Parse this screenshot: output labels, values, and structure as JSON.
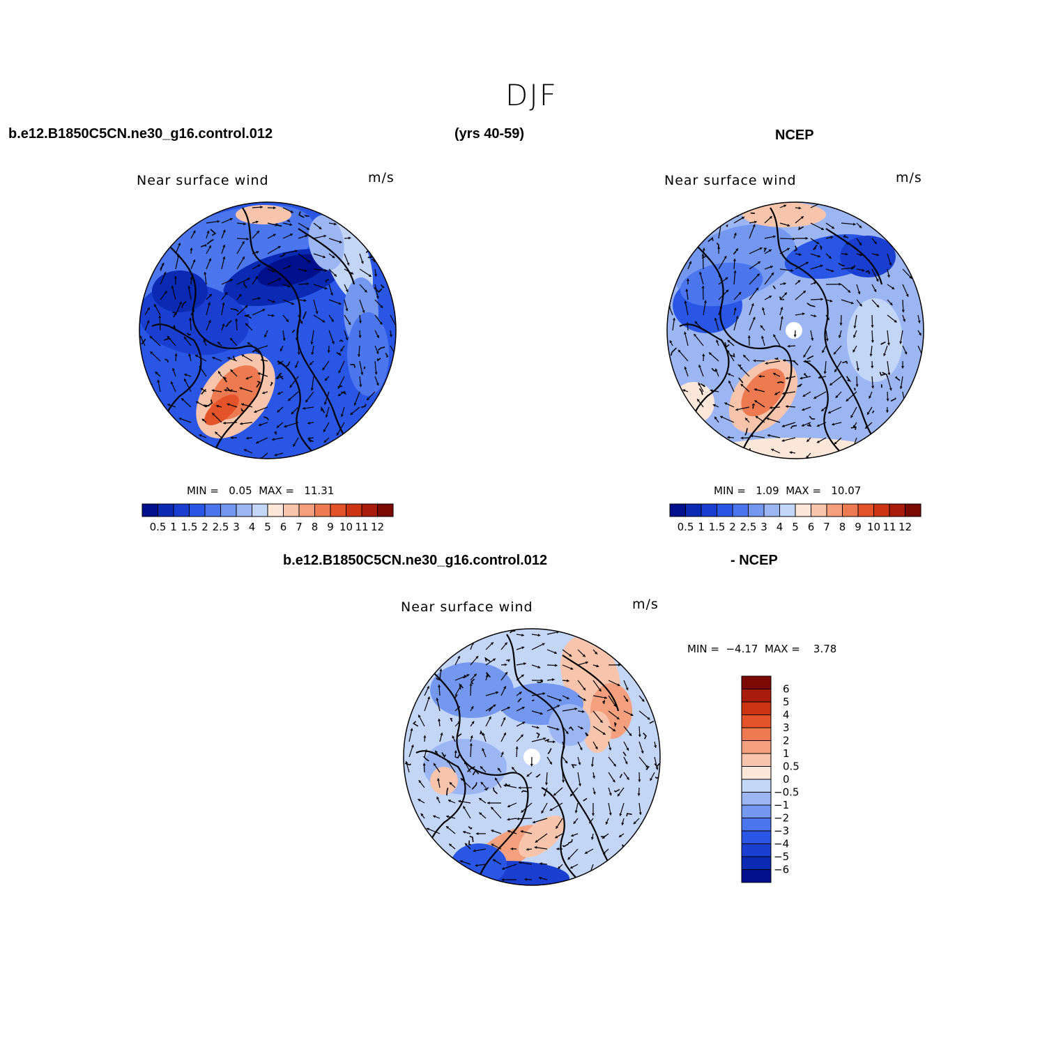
{
  "title": "DJF",
  "top_left": {
    "case": "b.e12.B1850C5CN.ne30_g16.control.012",
    "years": "(yrs 40-59)"
  },
  "top_right": {
    "case": "NCEP"
  },
  "bottom": {
    "case": "b.e12.B1850C5CN.ne30_g16.control.012",
    "minus": "- NCEP"
  },
  "panels": [
    {
      "id": "model",
      "title": "Near surface wind",
      "units": "m/s",
      "min_label": "MIN =",
      "min": "0.05",
      "max_label": "MAX =",
      "max": "11.31"
    },
    {
      "id": "obs",
      "title": "Near surface wind",
      "units": "m/s",
      "min_label": "MIN =",
      "min": "1.09",
      "max_label": "MAX =",
      "max": "10.07"
    },
    {
      "id": "diff",
      "title": "Near surface wind",
      "units": "m/s",
      "min_label": "MIN =",
      "min": "−4.17",
      "max_label": "MAX =",
      "max": "3.78"
    }
  ],
  "colorbar_abs": {
    "colors": [
      "#00108c",
      "#0a2ab4",
      "#1a3fd0",
      "#2a56e6",
      "#4b76ee",
      "#7497f0",
      "#9cb6f4",
      "#c4d6f8",
      "#fce7d8",
      "#f8c5ac",
      "#f4a07e",
      "#ee7a52",
      "#e4532a",
      "#cc3514",
      "#a71c0a",
      "#7c0a04"
    ],
    "labels": [
      "0.5",
      "1",
      "1.5",
      "2",
      "2.5",
      "3",
      "4",
      "5",
      "6",
      "7",
      "8",
      "9",
      "10",
      "11",
      "12"
    ]
  },
  "colorbar_diff": {
    "colors": [
      "#00108c",
      "#0a2ab4",
      "#1a3fd0",
      "#2a56e6",
      "#4b76ee",
      "#7497f0",
      "#9cb6f4",
      "#c4d6f8",
      "#fce7d8",
      "#f8c5ac",
      "#f4a07e",
      "#ee7a52",
      "#e4532a",
      "#cc3514",
      "#a71c0a",
      "#7c0a04"
    ],
    "labels": [
      "6",
      "5",
      "4",
      "3",
      "2",
      "1",
      "0.5",
      "0",
      "−0.5",
      "−1",
      "−2",
      "−3",
      "−4",
      "−5",
      "−6"
    ]
  }
}
